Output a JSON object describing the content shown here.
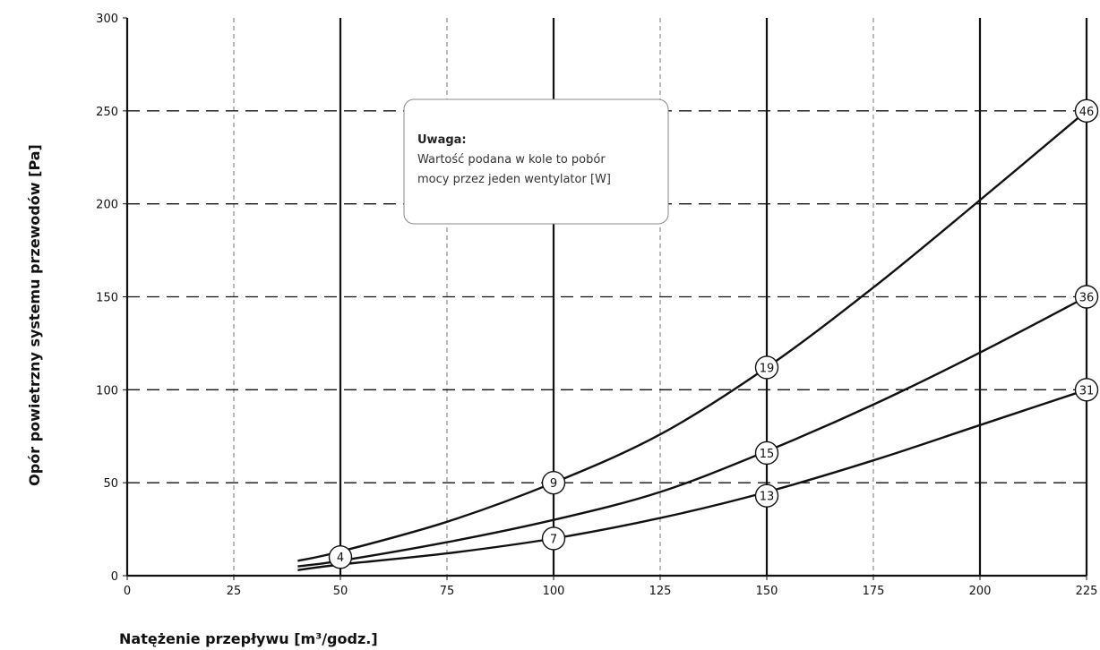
{
  "chart_data": {
    "type": "line",
    "xlabel": "Natężenie przepływu [m³/godz.]",
    "ylabel": "Opór powietrzny systemu przewodów [Pa]",
    "xlim": [
      0,
      225
    ],
    "ylim": [
      0,
      300
    ],
    "x_ticks": [
      "0",
      "25",
      "50",
      "75",
      "100",
      "125",
      "150",
      "175",
      "200",
      "225"
    ],
    "y_ticks": [
      "0",
      "50",
      "100",
      "150",
      "200",
      "250",
      "300"
    ],
    "grid": true,
    "series": [
      {
        "points": [
          [
            40,
            8
          ],
          [
            50,
            13
          ],
          [
            75,
            29
          ],
          [
            100,
            50
          ],
          [
            125,
            76
          ],
          [
            150,
            112
          ],
          [
            175,
            155
          ],
          [
            200,
            202
          ],
          [
            225,
            250
          ]
        ]
      },
      {
        "points": [
          [
            40,
            5
          ],
          [
            50,
            8
          ],
          [
            75,
            18
          ],
          [
            100,
            30
          ],
          [
            125,
            45
          ],
          [
            150,
            67
          ],
          [
            175,
            92
          ],
          [
            200,
            120
          ],
          [
            225,
            150
          ]
        ]
      },
      {
        "points": [
          [
            40,
            3
          ],
          [
            50,
            6
          ],
          [
            75,
            12
          ],
          [
            100,
            20
          ],
          [
            125,
            31
          ],
          [
            150,
            45
          ],
          [
            175,
            62
          ],
          [
            200,
            81
          ],
          [
            225,
            100
          ]
        ]
      }
    ],
    "markers": [
      {
        "x": 50,
        "y": 10,
        "label": "4"
      },
      {
        "x": 100,
        "y": 50,
        "label": "9"
      },
      {
        "x": 100,
        "y": 20,
        "label": "7"
      },
      {
        "x": 150,
        "y": 112,
        "label": "19"
      },
      {
        "x": 150,
        "y": 66,
        "label": "15"
      },
      {
        "x": 150,
        "y": 43,
        "label": "13"
      },
      {
        "x": 225,
        "y": 250,
        "label": "46"
      },
      {
        "x": 225,
        "y": 150,
        "label": "36"
      },
      {
        "x": 225,
        "y": 100,
        "label": "31"
      }
    ],
    "annotation": {
      "title": "Uwaga:",
      "lines": [
        "Wartość podana w kole to pobór",
        "mocy przez jeden wentylator [W]"
      ]
    }
  }
}
